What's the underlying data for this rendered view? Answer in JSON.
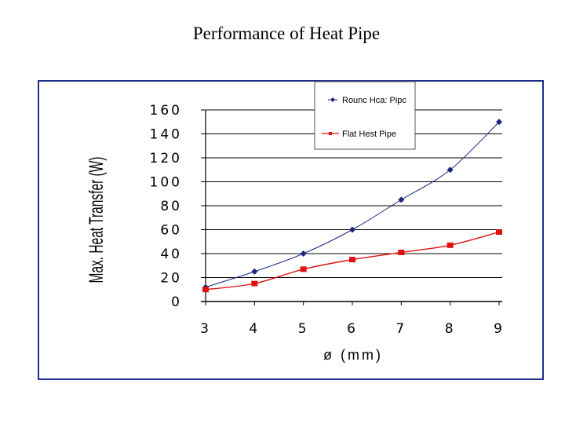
{
  "slide": {
    "title": "Performance of Heat Pipe"
  },
  "colors": {
    "round": "#1a237e",
    "flat": "#e01010",
    "frame": "#1f2f8a",
    "grid": "#000000"
  },
  "chart_data": {
    "type": "line",
    "title": "Performance of Heat Pipe",
    "xlabel": "ø (mm)",
    "ylabel": "Max. Heat Transfer (W)",
    "categories": [
      3,
      4,
      5,
      6,
      7,
      8,
      9
    ],
    "xlim": [
      3,
      9
    ],
    "ylim": [
      0,
      160
    ],
    "yticks": [
      0,
      20,
      40,
      60,
      80,
      100,
      120,
      140,
      160
    ],
    "grid": true,
    "legend_position": "top-right",
    "series": [
      {
        "name": "Rounc Hca: Pipc",
        "marker": "diamond",
        "values": [
          12,
          25,
          40,
          60,
          85,
          110,
          150
        ]
      },
      {
        "name": "Flat Hest Pipe",
        "marker": "square",
        "values": [
          10,
          15,
          27,
          35,
          41,
          47,
          58
        ]
      }
    ]
  }
}
